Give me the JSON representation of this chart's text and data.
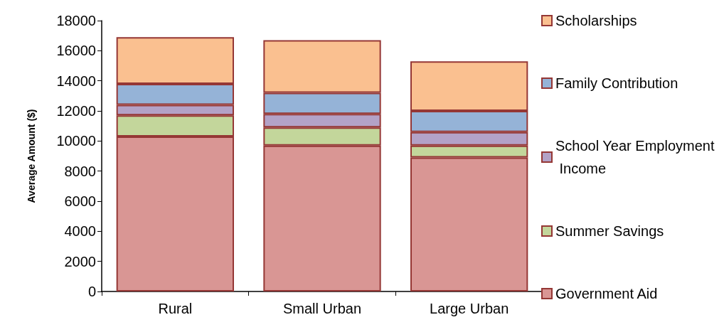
{
  "chart_data": {
    "type": "bar",
    "stacked": true,
    "ylabel": "Average Amount ($)",
    "categories": [
      "Rural",
      "Small Urban",
      "Large Urban"
    ],
    "series": [
      {
        "name": "Government Aid",
        "color": "#d99694",
        "values": [
          10300,
          9700,
          8900
        ]
      },
      {
        "name": "Summer Savings",
        "color": "#c3d69b",
        "values": [
          1400,
          1200,
          800
        ]
      },
      {
        "name": "School Year Employment Income",
        "color": "#b3a2c7",
        "values": [
          700,
          900,
          900
        ]
      },
      {
        "name": "Family Contribution",
        "color": "#95b3d7",
        "values": [
          1400,
          1400,
          1400
        ]
      },
      {
        "name": "Scholarships",
        "color": "#fac090",
        "values": [
          3100,
          3500,
          3300
        ]
      }
    ],
    "ylim": [
      0,
      18000
    ],
    "yticks": [
      0,
      2000,
      4000,
      6000,
      8000,
      10000,
      12000,
      14000,
      16000,
      18000
    ],
    "grid": false,
    "legend": "right"
  }
}
